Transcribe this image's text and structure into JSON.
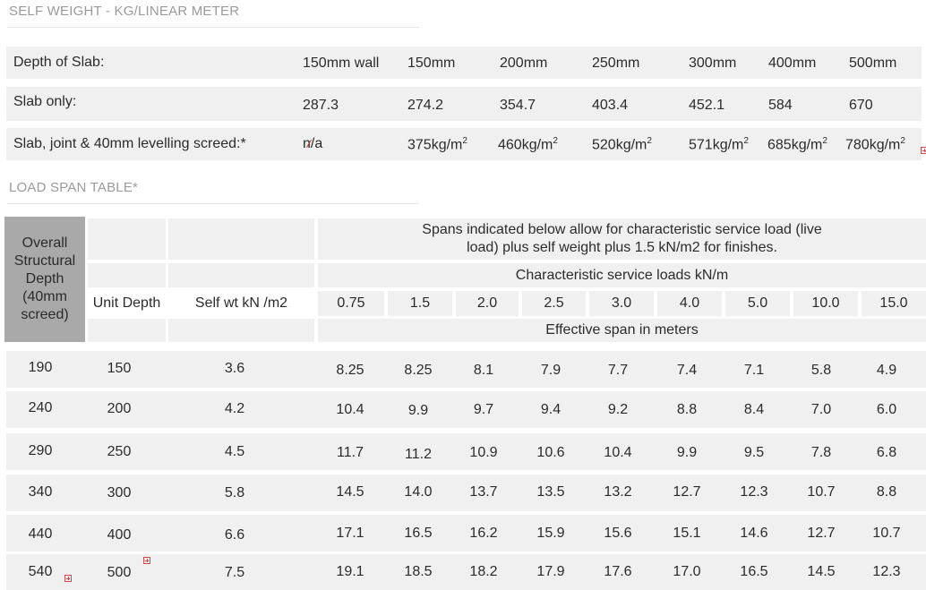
{
  "self_weight": {
    "title": "SELF WEIGHT - KG/LINEAR METER",
    "header": {
      "label": "Depth of Slab:",
      "cols": [
        "150mm wall",
        "150mm",
        "200mm",
        "250mm",
        "300mm",
        "400mm",
        "500mm"
      ]
    },
    "slab_only": {
      "label": "Slab only:",
      "values": [
        "287.3",
        "274.2",
        "354.7",
        "403.4",
        "452.1",
        "584",
        "670"
      ]
    },
    "screed": {
      "label": "Slab, joint & 40mm levelling screed:*",
      "na": "n/a",
      "values": [
        "375kg/m",
        "460kg/m",
        "520kg/m",
        "571kg/m",
        "685kg/m",
        "780kg/m"
      ],
      "unit_sup": "2"
    }
  },
  "load_span": {
    "title": "LOAD SPAN TABLE*",
    "headers": {
      "overall_depth": "Overall Structural Depth (40mm screed)",
      "unit_depth": "Unit Depth",
      "self_wt": "Self wt kN /m2",
      "spans_note": "Spans indicated below allow for characteristic service load (live load) plus self weight plus 1.5 kN/m2 for finishes.",
      "service_loads": "Characteristic service loads kN/m",
      "load_values": [
        "0.75",
        "1.5",
        "2.0",
        "2.5",
        "3.0",
        "4.0",
        "5.0",
        "10.0",
        "15.0"
      ],
      "effective_span": "Effective span in meters"
    },
    "rows": [
      {
        "overall": "190",
        "unit": "150",
        "self_wt": "3.6",
        "spans": [
          "8.25",
          "8.25",
          "8.1",
          "7.9",
          "7.7",
          "7.4",
          "7.1",
          "5.8",
          "4.9"
        ]
      },
      {
        "overall": "240",
        "unit": "200",
        "self_wt": "4.2",
        "spans": [
          "10.4",
          "9.9",
          "9.7",
          "9.4",
          "9.2",
          "8.8",
          "8.4",
          "7.0",
          "6.0"
        ]
      },
      {
        "overall": "290",
        "unit": "250",
        "self_wt": "4.5",
        "spans": [
          "11.7",
          "11.2",
          "10.9",
          "10.6",
          "10.4",
          "9.9",
          "9.5",
          "7.8",
          "6.8"
        ]
      },
      {
        "overall": "340",
        "unit": "300",
        "self_wt": "5.8",
        "spans": [
          "14.5",
          "14.0",
          "13.7",
          "13.5",
          "13.2",
          "12.7",
          "12.3",
          "10.7",
          "8.8"
        ]
      },
      {
        "overall": "440",
        "unit": "400",
        "self_wt": "6.6",
        "spans": [
          "17.1",
          "16.5",
          "16.2",
          "15.9",
          "15.6",
          "15.1",
          "14.6",
          "12.7",
          "10.7"
        ]
      },
      {
        "overall": "540",
        "unit": "500",
        "self_wt": "7.5",
        "spans": [
          "19.1",
          "18.5",
          "18.2",
          "17.9",
          "17.6",
          "17.0",
          "16.5",
          "14.5",
          "12.3"
        ]
      }
    ]
  }
}
